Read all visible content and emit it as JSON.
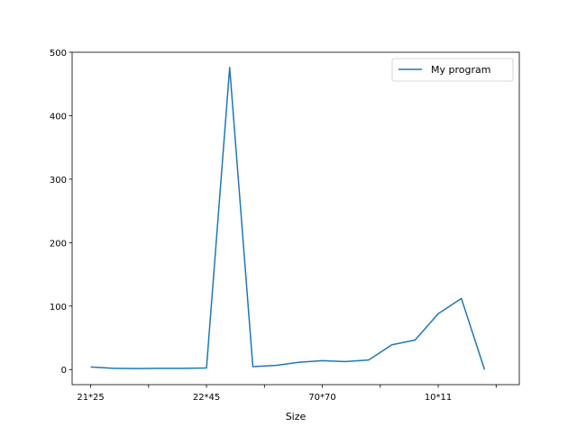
{
  "chart_data": {
    "type": "line",
    "title": "",
    "xlabel": "Size",
    "ylabel": "",
    "x": [
      0,
      1,
      2,
      3,
      4,
      5,
      6,
      7,
      8,
      9,
      10,
      11,
      12,
      13,
      14,
      15,
      16,
      17,
      18
    ],
    "xlim": [
      -0.8,
      18.5
    ],
    "ylim": [
      -23.8,
      500
    ],
    "xticks": [
      {
        "value": 0,
        "label": "21*25"
      },
      {
        "value": 2.5,
        "label": ""
      },
      {
        "value": 5,
        "label": "22*45"
      },
      {
        "value": 7.5,
        "label": ""
      },
      {
        "value": 10,
        "label": "70*70"
      },
      {
        "value": 12.5,
        "label": ""
      },
      {
        "value": 15,
        "label": "10*11"
      },
      {
        "value": 17.5,
        "label": ""
      }
    ],
    "yticks": [
      0,
      100,
      200,
      300,
      400,
      500
    ],
    "series": [
      {
        "name": "My program",
        "color": "#1f77b4",
        "values": [
          4,
          2,
          1.5,
          2,
          2,
          2.5,
          476,
          4.5,
          6.5,
          11.5,
          14,
          12.5,
          15,
          39,
          46.5,
          88,
          112,
          0,
          null
        ]
      }
    ],
    "legend": "top-right",
    "grid": false
  }
}
